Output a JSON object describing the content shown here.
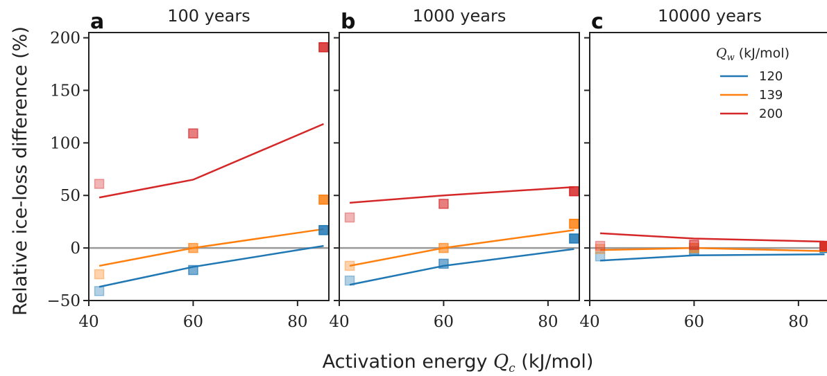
{
  "chart_data": {
    "type": "scatter",
    "ylabel": "Relative ice-loss difference (%)",
    "xlabel_prefix": "Activation energy ",
    "xlabel_symbol": "Q",
    "xlabel_sub": "c",
    "xlabel_suffix": " (kJ/mol)",
    "xlim": [
      40,
      86
    ],
    "ylim": [
      -50,
      205
    ],
    "x_ticks": [
      40,
      60,
      80
    ],
    "x_tick_labels": [
      "40",
      "60",
      "80"
    ],
    "y_ticks": [
      -50,
      0,
      50,
      100,
      150,
      200
    ],
    "y_tick_labels": [
      "−50",
      "0",
      "50",
      "100",
      "150",
      "200"
    ],
    "zero_line": 0,
    "grid": false,
    "legend": {
      "title_symbol": "Q",
      "title_sub": "w",
      "title_suffix": " (kJ/mol)",
      "placement": "top-right",
      "entries": [
        "120",
        "139",
        "200"
      ]
    },
    "colors": {
      "120": "#1f77b4",
      "139": "#ff7f0e",
      "200": "#d62728",
      "zero": "#999999"
    },
    "marker_x": [
      42,
      60,
      85
    ],
    "marker_opacity": [
      0.4,
      0.7,
      1.0
    ],
    "panels": [
      {
        "letter": "a",
        "title": "100 years",
        "lines": [
          {
            "name": "120",
            "x": [
              42,
              60,
              85
            ],
            "y": [
              -37,
              -18,
              2
            ]
          },
          {
            "name": "139",
            "x": [
              42,
              60,
              85
            ],
            "y": [
              -17,
              0,
              18
            ]
          },
          {
            "name": "200",
            "x": [
              42,
              60,
              85
            ],
            "y": [
              48,
              65,
              118
            ]
          }
        ],
        "markers": [
          {
            "name": "120",
            "y": [
              -41,
              -21,
              17
            ]
          },
          {
            "name": "139",
            "y": [
              -25,
              0,
              46
            ]
          },
          {
            "name": "200",
            "y": [
              61,
              109,
              191
            ]
          }
        ]
      },
      {
        "letter": "b",
        "title": "1000 years",
        "lines": [
          {
            "name": "120",
            "x": [
              42,
              60,
              85
            ],
            "y": [
              -35,
              -17,
              -1
            ]
          },
          {
            "name": "139",
            "x": [
              42,
              60,
              85
            ],
            "y": [
              -17,
              0,
              17
            ]
          },
          {
            "name": "200",
            "x": [
              42,
              60,
              85
            ],
            "y": [
              43,
              50,
              58
            ]
          }
        ],
        "markers": [
          {
            "name": "120",
            "y": [
              -31,
              -15,
              9
            ]
          },
          {
            "name": "139",
            "y": [
              -17,
              0,
              23
            ]
          },
          {
            "name": "200",
            "y": [
              29,
              42,
              54
            ]
          }
        ]
      },
      {
        "letter": "c",
        "title": "10000 years",
        "lines": [
          {
            "name": "120",
            "x": [
              42,
              60,
              85
            ],
            "y": [
              -12,
              -7,
              -6
            ]
          },
          {
            "name": "139",
            "x": [
              42,
              60,
              85
            ],
            "y": [
              -2,
              0,
              -3
            ]
          },
          {
            "name": "200",
            "x": [
              42,
              60,
              85
            ],
            "y": [
              14,
              9,
              6
            ]
          }
        ],
        "markers": [
          {
            "name": "120",
            "y": [
              -8,
              -3,
              0
            ]
          },
          {
            "name": "139",
            "y": [
              -1,
              0,
              1
            ]
          },
          {
            "name": "200",
            "y": [
              2,
              3,
              2
            ]
          }
        ]
      }
    ]
  }
}
